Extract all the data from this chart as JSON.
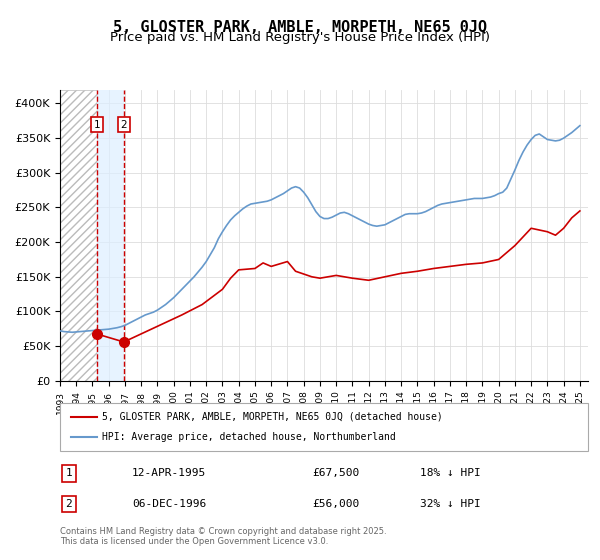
{
  "title": "5, GLOSTER PARK, AMBLE, MORPETH, NE65 0JQ",
  "subtitle": "Price paid vs. HM Land Registry's House Price Index (HPI)",
  "title_fontsize": 11,
  "subtitle_fontsize": 9.5,
  "xlim_start": 1993.0,
  "xlim_end": 2025.5,
  "ylim": [
    0,
    420000
  ],
  "yticks": [
    0,
    50000,
    100000,
    150000,
    200000,
    250000,
    300000,
    350000,
    400000
  ],
  "ytick_labels": [
    "£0",
    "£50K",
    "£100K",
    "£150K",
    "£200K",
    "£250K",
    "£300K",
    "£350K",
    "£400K"
  ],
  "xticks": [
    1993,
    1994,
    1995,
    1996,
    1997,
    1998,
    1999,
    2000,
    2001,
    2002,
    2003,
    2004,
    2005,
    2006,
    2007,
    2008,
    2009,
    2010,
    2011,
    2012,
    2013,
    2014,
    2015,
    2016,
    2017,
    2018,
    2019,
    2020,
    2021,
    2022,
    2023,
    2024,
    2025
  ],
  "hpi_color": "#6699cc",
  "price_color": "#cc0000",
  "transaction1_date": 1995.278,
  "transaction1_price": 67500,
  "transaction2_date": 1996.927,
  "transaction2_price": 56000,
  "transaction1_label": "1",
  "transaction2_label": "2",
  "vline1_color": "#cc0000",
  "vline2_color": "#cc0000",
  "hatch_color": "#cccccc",
  "shade_color": "#ddeeff",
  "legend_label_red": "5, GLOSTER PARK, AMBLE, MORPETH, NE65 0JQ (detached house)",
  "legend_label_blue": "HPI: Average price, detached house, Northumberland",
  "table_row1": [
    "1",
    "12-APR-1995",
    "£67,500",
    "18% ↓ HPI"
  ],
  "table_row2": [
    "2",
    "06-DEC-1996",
    "£56,000",
    "32% ↓ HPI"
  ],
  "footer": "Contains HM Land Registry data © Crown copyright and database right 2025.\nThis data is licensed under the Open Government Licence v3.0.",
  "hpi_data": [
    [
      1993.0,
      72000
    ],
    [
      1993.25,
      71000
    ],
    [
      1993.5,
      70500
    ],
    [
      1993.75,
      70000
    ],
    [
      1994.0,
      70500
    ],
    [
      1994.25,
      71000
    ],
    [
      1994.5,
      71500
    ],
    [
      1994.75,
      72000
    ],
    [
      1995.0,
      72500
    ],
    [
      1995.25,
      73000
    ],
    [
      1995.5,
      73500
    ],
    [
      1995.75,
      74000
    ],
    [
      1996.0,
      74500
    ],
    [
      1996.25,
      75500
    ],
    [
      1996.5,
      76500
    ],
    [
      1996.75,
      78000
    ],
    [
      1997.0,
      80000
    ],
    [
      1997.25,
      83000
    ],
    [
      1997.5,
      86000
    ],
    [
      1997.75,
      89000
    ],
    [
      1998.0,
      92000
    ],
    [
      1998.25,
      95000
    ],
    [
      1998.5,
      97000
    ],
    [
      1998.75,
      99000
    ],
    [
      1999.0,
      102000
    ],
    [
      1999.25,
      106000
    ],
    [
      1999.5,
      110000
    ],
    [
      1999.75,
      115000
    ],
    [
      2000.0,
      120000
    ],
    [
      2000.25,
      126000
    ],
    [
      2000.5,
      132000
    ],
    [
      2000.75,
      138000
    ],
    [
      2001.0,
      144000
    ],
    [
      2001.25,
      150000
    ],
    [
      2001.5,
      157000
    ],
    [
      2001.75,
      164000
    ],
    [
      2002.0,
      172000
    ],
    [
      2002.25,
      182000
    ],
    [
      2002.5,
      192000
    ],
    [
      2002.75,
      205000
    ],
    [
      2003.0,
      215000
    ],
    [
      2003.25,
      224000
    ],
    [
      2003.5,
      232000
    ],
    [
      2003.75,
      238000
    ],
    [
      2004.0,
      243000
    ],
    [
      2004.25,
      248000
    ],
    [
      2004.5,
      252000
    ],
    [
      2004.75,
      255000
    ],
    [
      2005.0,
      256000
    ],
    [
      2005.25,
      257000
    ],
    [
      2005.5,
      258000
    ],
    [
      2005.75,
      259000
    ],
    [
      2006.0,
      261000
    ],
    [
      2006.25,
      264000
    ],
    [
      2006.5,
      267000
    ],
    [
      2006.75,
      270000
    ],
    [
      2007.0,
      274000
    ],
    [
      2007.25,
      278000
    ],
    [
      2007.5,
      280000
    ],
    [
      2007.75,
      278000
    ],
    [
      2008.0,
      272000
    ],
    [
      2008.25,
      264000
    ],
    [
      2008.5,
      254000
    ],
    [
      2008.75,
      244000
    ],
    [
      2009.0,
      237000
    ],
    [
      2009.25,
      234000
    ],
    [
      2009.5,
      234000
    ],
    [
      2009.75,
      236000
    ],
    [
      2010.0,
      239000
    ],
    [
      2010.25,
      242000
    ],
    [
      2010.5,
      243000
    ],
    [
      2010.75,
      241000
    ],
    [
      2011.0,
      238000
    ],
    [
      2011.25,
      235000
    ],
    [
      2011.5,
      232000
    ],
    [
      2011.75,
      229000
    ],
    [
      2012.0,
      226000
    ],
    [
      2012.25,
      224000
    ],
    [
      2012.5,
      223000
    ],
    [
      2012.75,
      224000
    ],
    [
      2013.0,
      225000
    ],
    [
      2013.25,
      228000
    ],
    [
      2013.5,
      231000
    ],
    [
      2013.75,
      234000
    ],
    [
      2014.0,
      237000
    ],
    [
      2014.25,
      240000
    ],
    [
      2014.5,
      241000
    ],
    [
      2014.75,
      241000
    ],
    [
      2015.0,
      241000
    ],
    [
      2015.25,
      242000
    ],
    [
      2015.5,
      244000
    ],
    [
      2015.75,
      247000
    ],
    [
      2016.0,
      250000
    ],
    [
      2016.25,
      253000
    ],
    [
      2016.5,
      255000
    ],
    [
      2016.75,
      256000
    ],
    [
      2017.0,
      257000
    ],
    [
      2017.25,
      258000
    ],
    [
      2017.5,
      259000
    ],
    [
      2017.75,
      260000
    ],
    [
      2018.0,
      261000
    ],
    [
      2018.25,
      262000
    ],
    [
      2018.5,
      263000
    ],
    [
      2018.75,
      263000
    ],
    [
      2019.0,
      263000
    ],
    [
      2019.25,
      264000
    ],
    [
      2019.5,
      265000
    ],
    [
      2019.75,
      267000
    ],
    [
      2020.0,
      270000
    ],
    [
      2020.25,
      272000
    ],
    [
      2020.5,
      278000
    ],
    [
      2020.75,
      291000
    ],
    [
      2021.0,
      304000
    ],
    [
      2021.25,
      318000
    ],
    [
      2021.5,
      330000
    ],
    [
      2021.75,
      340000
    ],
    [
      2022.0,
      348000
    ],
    [
      2022.25,
      354000
    ],
    [
      2022.5,
      356000
    ],
    [
      2022.75,
      352000
    ],
    [
      2023.0,
      348000
    ],
    [
      2023.25,
      347000
    ],
    [
      2023.5,
      346000
    ],
    [
      2023.75,
      347000
    ],
    [
      2024.0,
      350000
    ],
    [
      2024.25,
      354000
    ],
    [
      2024.5,
      358000
    ],
    [
      2024.75,
      363000
    ],
    [
      2025.0,
      368000
    ]
  ],
  "price_data": [
    [
      1995.278,
      67500
    ],
    [
      1996.927,
      56000
    ],
    [
      2000.5,
      95000
    ],
    [
      2001.75,
      110000
    ],
    [
      2003.0,
      132000
    ],
    [
      2003.5,
      148000
    ],
    [
      2004.0,
      160000
    ],
    [
      2005.0,
      162000
    ],
    [
      2005.5,
      170000
    ],
    [
      2006.0,
      165000
    ],
    [
      2007.0,
      172000
    ],
    [
      2007.5,
      158000
    ],
    [
      2008.5,
      150000
    ],
    [
      2009.0,
      148000
    ],
    [
      2010.0,
      152000
    ],
    [
      2011.0,
      148000
    ],
    [
      2012.0,
      145000
    ],
    [
      2013.0,
      150000
    ],
    [
      2014.0,
      155000
    ],
    [
      2015.0,
      158000
    ],
    [
      2016.0,
      162000
    ],
    [
      2017.0,
      165000
    ],
    [
      2018.0,
      168000
    ],
    [
      2019.0,
      170000
    ],
    [
      2020.0,
      175000
    ],
    [
      2021.0,
      195000
    ],
    [
      2022.0,
      220000
    ],
    [
      2023.0,
      215000
    ],
    [
      2023.5,
      210000
    ],
    [
      2024.0,
      220000
    ],
    [
      2024.5,
      235000
    ],
    [
      2025.0,
      245000
    ]
  ]
}
